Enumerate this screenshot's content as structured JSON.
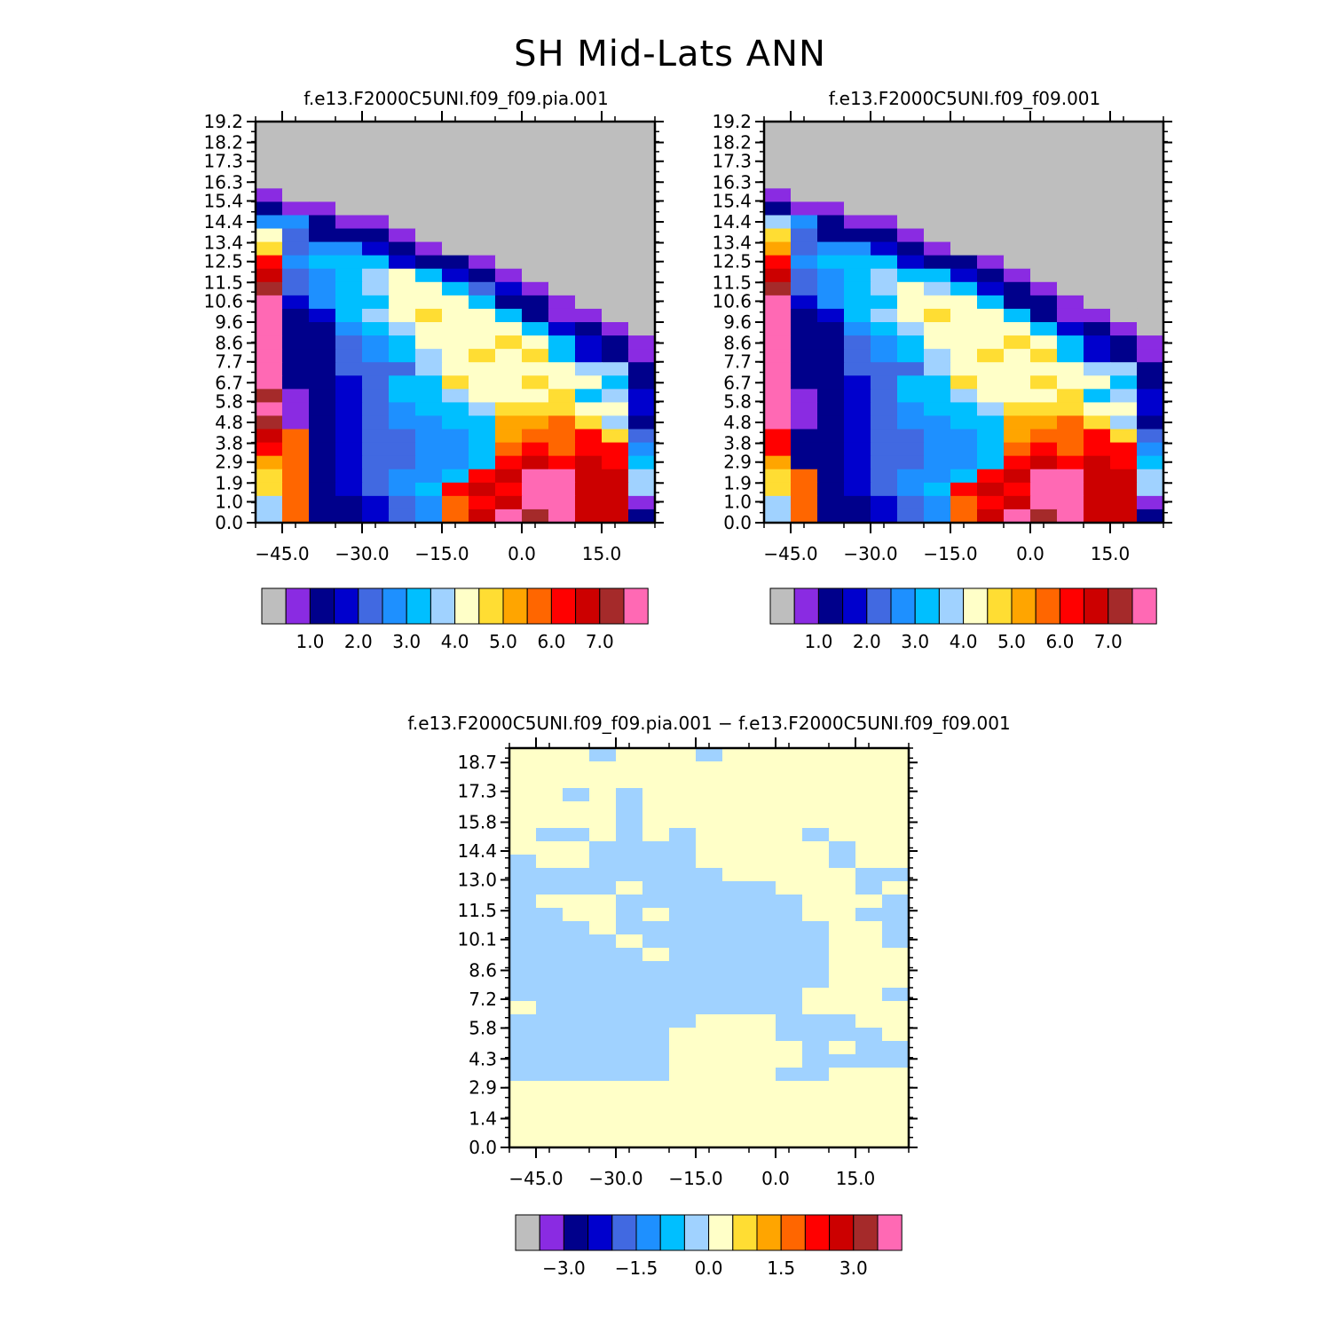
{
  "title": "SH Mid-Lats ANN",
  "colors": {
    "background": "#ffffff",
    "missing": "#bebebe",
    "palette": [
      "#bebebe",
      "#8a2be2",
      "#00008b",
      "#0000cd",
      "#4169e1",
      "#1e90ff",
      "#00bfff",
      "#a0d2ff",
      "#ffffc8",
      "#ffdd33",
      "#ffa500",
      "#ff6600",
      "#ff0000",
      "#cc0000",
      "#a52a2a",
      "#ff69b4"
    ]
  },
  "chart_data": [
    {
      "type": "heatmap",
      "title": "f.e13.F2000C5UNI.f09_f09.pia.001",
      "xlabel": "",
      "ylabel": "",
      "x_ticks": [
        "−45.0",
        "−30.0",
        "−15.0",
        "0.0",
        "15.0"
      ],
      "y_ticks": [
        "0.0",
        "1.0",
        "1.9",
        "2.9",
        "3.8",
        "4.8",
        "5.8",
        "6.7",
        "7.7",
        "8.6",
        "9.6",
        "10.6",
        "11.5",
        "12.5",
        "13.4",
        "14.4",
        "15.4",
        "16.3",
        "17.3",
        "18.2",
        "19.2"
      ],
      "xlim": [
        -50,
        25
      ],
      "ylim": [
        0.0,
        19.2
      ],
      "colorbar_labels": [
        "1.0",
        "2.0",
        "3.0",
        "4.0",
        "5.0",
        "6.0",
        "7.0"
      ],
      "grid_rows_top_to_bottom": [
        "000000000000000",
        "000000000000000",
        "000000000000000",
        "000000000000000",
        "000000000000000",
        "100000000000000",
        "211000000000000",
        "552110000000000",
        "842221000000000",
        "945532100000000",
        "c56663221000000",
        "d45678632100000",
        "e45678864310000",
        "f35668886221000",
        "f23678988621100",
        "f22567888863210",
        "f22456888986321",
        "f22456789896321",
        "f22444788888772",
        "f22346698898862",
        "e12346678889673",
        "f12345667999883",
        "e12345566aab972",
        "db2344556abbc94",
        "cb2344556bcbcc5",
        "ab2344556cdcdc6",
        "9b234556cdffdd7",
        "9b23456cdcffdd7",
        "7b22345bcdffdd1",
        "7b22345bdfefdd2"
      ]
    },
    {
      "type": "heatmap",
      "title": "f.e13.F2000C5UNI.f09_f09.001",
      "xlabel": "",
      "ylabel": "",
      "x_ticks": [
        "−45.0",
        "−30.0",
        "−15.0",
        "0.0",
        "15.0"
      ],
      "y_ticks": [
        "0.0",
        "1.0",
        "1.9",
        "2.9",
        "3.8",
        "4.8",
        "5.8",
        "6.7",
        "7.7",
        "8.6",
        "9.6",
        "10.6",
        "11.5",
        "12.5",
        "13.4",
        "14.4",
        "15.4",
        "16.3",
        "17.3",
        "18.2",
        "19.2"
      ],
      "xlim": [
        -50,
        25
      ],
      "ylim": [
        0.0,
        19.2
      ],
      "colorbar_labels": [
        "1.0",
        "2.0",
        "3.0",
        "4.0",
        "5.0",
        "6.0",
        "7.0"
      ],
      "grid_rows_top_to_bottom": [
        "000000000000000",
        "000000000000000",
        "000000000000000",
        "000000000000000",
        "000000000000000",
        "100000000000000",
        "211000000000000",
        "752110000000000",
        "942221000000000",
        "a45532100000000",
        "c56663221000000",
        "d45676632100000",
        "e45678763210000",
        "f35668886221000",
        "f23678988621100",
        "f22567888863210",
        "f22456888986321",
        "f22456789896321",
        "f22444788888772",
        "f22346698898862",
        "f12346678889673",
        "f12345667999883",
        "f12345566aab972",
        "c22344556abbc94",
        "c22344556bcbcc5",
        "a22344556cdcdc6",
        "9b234556cdffdd7",
        "9b23456cdcffdd7",
        "7b22345bcdffdd1",
        "7b22345bdfefdd2"
      ]
    },
    {
      "type": "heatmap",
      "title": "f.e13.F2000C5UNI.f09_f09.pia.001 − f.e13.F2000C5UNI.f09_f09.001",
      "xlabel": "",
      "ylabel": "",
      "x_ticks": [
        "−45.0",
        "−30.0",
        "−15.0",
        "0.0",
        "15.0"
      ],
      "y_ticks": [
        "0.0",
        "1.4",
        "2.9",
        "4.3",
        "5.8",
        "7.2",
        "8.6",
        "10.1",
        "11.5",
        "13.0",
        "14.4",
        "15.8",
        "17.3",
        "18.7"
      ],
      "xlim": [
        -50,
        25
      ],
      "ylim": [
        0.0,
        19.4
      ],
      "colorbar_labels": [
        "−3.0",
        "−1.5",
        "0.0",
        "1.5",
        "3.0"
      ],
      "grid_rows_top_to_bottom": [
        "000100001000000",
        "000000000000000",
        "000000000000000",
        "000000000000000",
        "000000000000000",
        "000000000000000",
        "000000000000000",
        "000000000000000",
        "000000000000000",
        "000000000000000",
        "000000000000000",
        "000000000000000",
        "000000000000000",
        "000000000000000",
        "000000000000000",
        "000000000000000",
        "000000000000000",
        "000000000000000",
        "000000000000000",
        "000000000000000",
        "000000000000000",
        "000000000000000",
        "000000000000000",
        "000000000000000",
        "000000000000000",
        "000000000000000",
        "000000000000000",
        "000000000000000",
        "000000000000000",
        "000000000000000"
      ],
      "blue_cells": [
        [
          0,
          3
        ],
        [
          0,
          7
        ],
        [
          3,
          2
        ],
        [
          3,
          4
        ],
        [
          4,
          4
        ],
        [
          5,
          4
        ],
        [
          6,
          4
        ],
        [
          6,
          1
        ],
        [
          6,
          2
        ],
        [
          6,
          4
        ],
        [
          6,
          6
        ],
        [
          6,
          11
        ],
        [
          7,
          3
        ],
        [
          7,
          4
        ],
        [
          7,
          5
        ],
        [
          7,
          6
        ],
        [
          7,
          12
        ],
        [
          8,
          0
        ],
        [
          8,
          3
        ],
        [
          8,
          4
        ],
        [
          8,
          5
        ],
        [
          8,
          6
        ],
        [
          8,
          12
        ],
        [
          9,
          0
        ],
        [
          9,
          1
        ],
        [
          9,
          2
        ],
        [
          9,
          3
        ],
        [
          9,
          4
        ],
        [
          9,
          5
        ],
        [
          9,
          6
        ],
        [
          9,
          7
        ],
        [
          9,
          13
        ],
        [
          9,
          14
        ],
        [
          10,
          0
        ],
        [
          10,
          1
        ],
        [
          10,
          2
        ],
        [
          10,
          3
        ],
        [
          10,
          5
        ],
        [
          10,
          6
        ],
        [
          10,
          7
        ],
        [
          10,
          8
        ],
        [
          10,
          9
        ],
        [
          10,
          13
        ],
        [
          11,
          0
        ],
        [
          11,
          4
        ],
        [
          11,
          5
        ],
        [
          11,
          6
        ],
        [
          11,
          7
        ],
        [
          11,
          8
        ],
        [
          11,
          9
        ],
        [
          11,
          10
        ],
        [
          11,
          14
        ],
        [
          12,
          0
        ],
        [
          12,
          1
        ],
        [
          12,
          4
        ],
        [
          12,
          6
        ],
        [
          12,
          7
        ],
        [
          12,
          8
        ],
        [
          12,
          9
        ],
        [
          12,
          10
        ],
        [
          12,
          13
        ],
        [
          12,
          14
        ],
        [
          13,
          0
        ],
        [
          13,
          1
        ],
        [
          13,
          2
        ],
        [
          13,
          4
        ],
        [
          13,
          5
        ],
        [
          13,
          6
        ],
        [
          13,
          7
        ],
        [
          13,
          8
        ],
        [
          13,
          9
        ],
        [
          13,
          10
        ],
        [
          13,
          11
        ],
        [
          13,
          14
        ],
        [
          14,
          0
        ],
        [
          14,
          1
        ],
        [
          14,
          2
        ],
        [
          14,
          3
        ],
        [
          14,
          5
        ],
        [
          14,
          6
        ],
        [
          14,
          7
        ],
        [
          14,
          8
        ],
        [
          14,
          9
        ],
        [
          14,
          10
        ],
        [
          14,
          11
        ],
        [
          14,
          14
        ],
        [
          15,
          0
        ],
        [
          15,
          1
        ],
        [
          15,
          2
        ],
        [
          15,
          3
        ],
        [
          15,
          4
        ],
        [
          15,
          6
        ],
        [
          15,
          7
        ],
        [
          15,
          8
        ],
        [
          15,
          9
        ],
        [
          15,
          10
        ],
        [
          15,
          11
        ],
        [
          16,
          0
        ],
        [
          16,
          1
        ],
        [
          16,
          2
        ],
        [
          16,
          3
        ],
        [
          16,
          4
        ],
        [
          16,
          5
        ],
        [
          16,
          6
        ],
        [
          16,
          7
        ],
        [
          16,
          8
        ],
        [
          16,
          9
        ],
        [
          16,
          10
        ],
        [
          16,
          11
        ],
        [
          17,
          0
        ],
        [
          17,
          1
        ],
        [
          17,
          2
        ],
        [
          17,
          3
        ],
        [
          17,
          4
        ],
        [
          17,
          5
        ],
        [
          17,
          6
        ],
        [
          17,
          7
        ],
        [
          17,
          8
        ],
        [
          17,
          9
        ],
        [
          17,
          10
        ],
        [
          17,
          11
        ],
        [
          18,
          0
        ],
        [
          18,
          1
        ],
        [
          18,
          2
        ],
        [
          18,
          3
        ],
        [
          18,
          4
        ],
        [
          18,
          5
        ],
        [
          18,
          6
        ],
        [
          18,
          7
        ],
        [
          18,
          8
        ],
        [
          18,
          9
        ],
        [
          18,
          10
        ],
        [
          18,
          14
        ],
        [
          19,
          1
        ],
        [
          19,
          2
        ],
        [
          19,
          3
        ],
        [
          19,
          4
        ],
        [
          19,
          5
        ],
        [
          19,
          6
        ],
        [
          19,
          7
        ],
        [
          19,
          8
        ],
        [
          19,
          9
        ],
        [
          19,
          10
        ],
        [
          20,
          0
        ],
        [
          20,
          1
        ],
        [
          20,
          2
        ],
        [
          20,
          3
        ],
        [
          20,
          4
        ],
        [
          20,
          5
        ],
        [
          20,
          6
        ],
        [
          20,
          10
        ],
        [
          20,
          11
        ],
        [
          20,
          12
        ],
        [
          21,
          0
        ],
        [
          21,
          1
        ],
        [
          21,
          2
        ],
        [
          21,
          3
        ],
        [
          21,
          4
        ],
        [
          21,
          5
        ],
        [
          21,
          10
        ],
        [
          21,
          11
        ],
        [
          21,
          12
        ],
        [
          21,
          13
        ],
        [
          22,
          0
        ],
        [
          22,
          1
        ],
        [
          22,
          2
        ],
        [
          22,
          3
        ],
        [
          22,
          4
        ],
        [
          22,
          5
        ],
        [
          22,
          11
        ],
        [
          22,
          13
        ],
        [
          22,
          14
        ],
        [
          23,
          0
        ],
        [
          23,
          1
        ],
        [
          23,
          2
        ],
        [
          23,
          3
        ],
        [
          23,
          4
        ],
        [
          23,
          5
        ],
        [
          23,
          11
        ],
        [
          23,
          12
        ],
        [
          23,
          13
        ],
        [
          23,
          14
        ],
        [
          24,
          0
        ],
        [
          24,
          1
        ],
        [
          24,
          2
        ],
        [
          24,
          3
        ],
        [
          24,
          4
        ],
        [
          24,
          5
        ],
        [
          24,
          10
        ],
        [
          24,
          11
        ]
      ]
    }
  ]
}
